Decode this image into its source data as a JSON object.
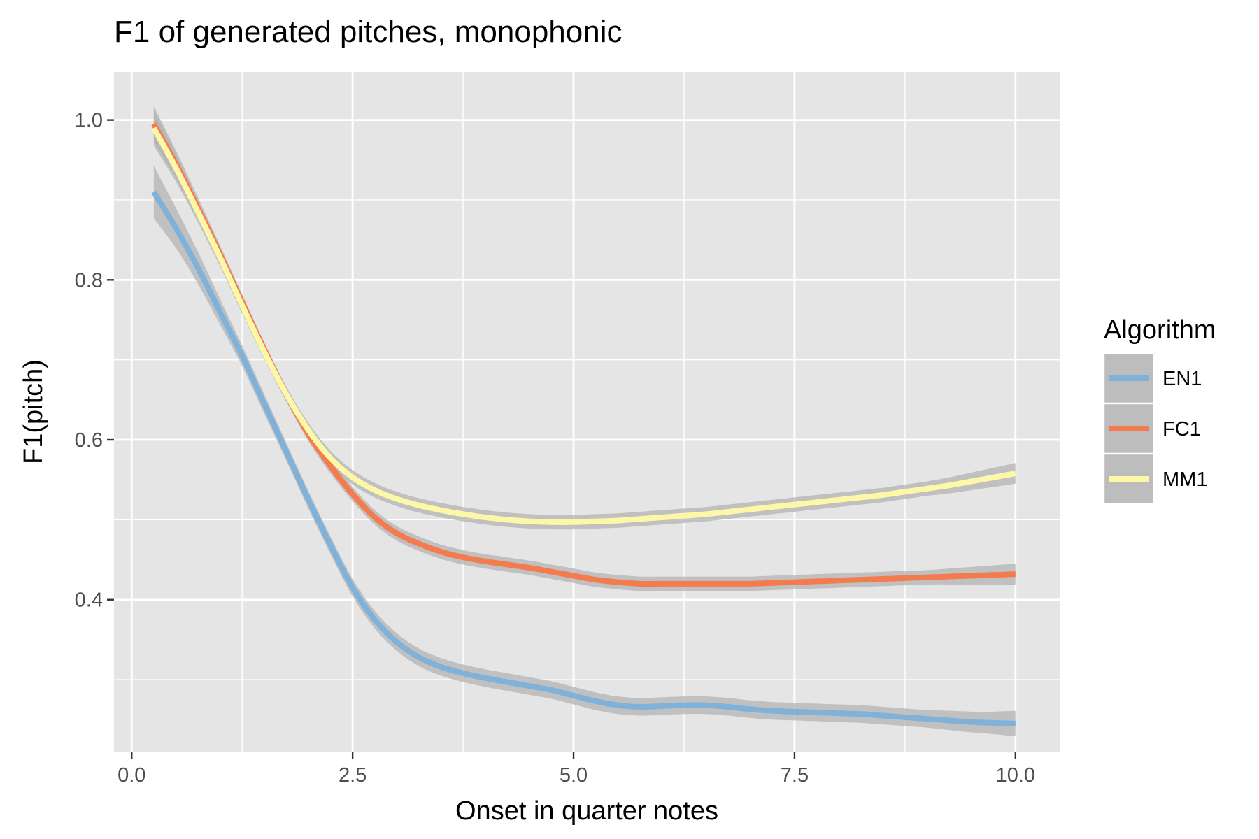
{
  "chart_data": {
    "type": "line",
    "title": "F1 of generated pitches, monophonic",
    "xlabel": "Onset in quarter notes",
    "ylabel": "F1(pitch)",
    "xlim": [
      -0.2,
      10.5
    ],
    "ylim": [
      0.21,
      1.06
    ],
    "xticks": [
      {
        "value": 0,
        "label": "0.0"
      },
      {
        "value": 2.5,
        "label": "2.5"
      },
      {
        "value": 5,
        "label": "5.0"
      },
      {
        "value": 7.5,
        "label": "7.5"
      },
      {
        "value": 10,
        "label": "10.0"
      }
    ],
    "yticks": [
      {
        "value": 0.4,
        "label": "0.4"
      },
      {
        "value": 0.6,
        "label": "0.6"
      },
      {
        "value": 0.8,
        "label": "0.8"
      },
      {
        "value": 1.0,
        "label": "1.0"
      }
    ],
    "x_minor_grid": [
      1.25,
      3.75,
      6.25,
      8.75
    ],
    "y_minor_grid": [
      0.3,
      0.5,
      0.7,
      0.9
    ],
    "grid": true,
    "panel_color": "#e5e5e5",
    "ribbon_color": "#b3b3b3",
    "legend": {
      "title": "Algorithm",
      "position": "right"
    },
    "series": [
      {
        "name": "EN1",
        "color": "#7fb1d9",
        "points": [
          {
            "x": 0.25,
            "y": 0.91,
            "se": 0.033
          },
          {
            "x": 0.5,
            "y": 0.865,
            "se": 0.025
          },
          {
            "x": 0.75,
            "y": 0.815,
            "se": 0.02
          },
          {
            "x": 1.0,
            "y": 0.76,
            "se": 0.016
          },
          {
            "x": 1.25,
            "y": 0.705,
            "se": 0.013
          },
          {
            "x": 1.5,
            "y": 0.645,
            "se": 0.012
          },
          {
            "x": 1.75,
            "y": 0.585,
            "se": 0.011
          },
          {
            "x": 2.0,
            "y": 0.525,
            "se": 0.011
          },
          {
            "x": 2.25,
            "y": 0.468,
            "se": 0.011
          },
          {
            "x": 2.5,
            "y": 0.415,
            "se": 0.011
          },
          {
            "x": 2.75,
            "y": 0.375,
            "se": 0.011
          },
          {
            "x": 3.0,
            "y": 0.347,
            "se": 0.011
          },
          {
            "x": 3.25,
            "y": 0.328,
            "se": 0.011
          },
          {
            "x": 3.5,
            "y": 0.316,
            "se": 0.011
          },
          {
            "x": 3.75,
            "y": 0.308,
            "se": 0.011
          },
          {
            "x": 4.0,
            "y": 0.302,
            "se": 0.011
          },
          {
            "x": 4.25,
            "y": 0.297,
            "se": 0.011
          },
          {
            "x": 4.5,
            "y": 0.292,
            "se": 0.011
          },
          {
            "x": 4.75,
            "y": 0.287,
            "se": 0.011
          },
          {
            "x": 5.0,
            "y": 0.28,
            "se": 0.011
          },
          {
            "x": 5.25,
            "y": 0.273,
            "se": 0.011
          },
          {
            "x": 5.5,
            "y": 0.268,
            "se": 0.011
          },
          {
            "x": 5.75,
            "y": 0.266,
            "se": 0.011
          },
          {
            "x": 6.0,
            "y": 0.267,
            "se": 0.011
          },
          {
            "x": 6.25,
            "y": 0.268,
            "se": 0.011
          },
          {
            "x": 6.5,
            "y": 0.268,
            "se": 0.011
          },
          {
            "x": 6.75,
            "y": 0.266,
            "se": 0.011
          },
          {
            "x": 7.0,
            "y": 0.263,
            "se": 0.011
          },
          {
            "x": 7.25,
            "y": 0.261,
            "se": 0.011
          },
          {
            "x": 7.5,
            "y": 0.26,
            "se": 0.011
          },
          {
            "x": 7.75,
            "y": 0.259,
            "se": 0.011
          },
          {
            "x": 8.0,
            "y": 0.258,
            "se": 0.011
          },
          {
            "x": 8.25,
            "y": 0.257,
            "se": 0.011
          },
          {
            "x": 8.5,
            "y": 0.255,
            "se": 0.011
          },
          {
            "x": 8.75,
            "y": 0.253,
            "se": 0.011
          },
          {
            "x": 9.0,
            "y": 0.251,
            "se": 0.011
          },
          {
            "x": 9.25,
            "y": 0.249,
            "se": 0.012
          },
          {
            "x": 9.5,
            "y": 0.247,
            "se": 0.013
          },
          {
            "x": 9.75,
            "y": 0.246,
            "se": 0.014
          },
          {
            "x": 10.0,
            "y": 0.245,
            "se": 0.016
          }
        ]
      },
      {
        "name": "FC1",
        "color": "#f47b4e",
        "points": [
          {
            "x": 0.25,
            "y": 0.995,
            "se": 0.022
          },
          {
            "x": 0.5,
            "y": 0.945,
            "se": 0.017
          },
          {
            "x": 0.75,
            "y": 0.89,
            "se": 0.013
          },
          {
            "x": 1.0,
            "y": 0.832,
            "se": 0.011
          },
          {
            "x": 1.25,
            "y": 0.772,
            "se": 0.01
          },
          {
            "x": 1.5,
            "y": 0.713,
            "se": 0.009
          },
          {
            "x": 1.75,
            "y": 0.657,
            "se": 0.009
          },
          {
            "x": 2.0,
            "y": 0.607,
            "se": 0.009
          },
          {
            "x": 2.25,
            "y": 0.567,
            "se": 0.009
          },
          {
            "x": 2.5,
            "y": 0.532,
            "se": 0.009
          },
          {
            "x": 2.75,
            "y": 0.503,
            "se": 0.009
          },
          {
            "x": 3.0,
            "y": 0.483,
            "se": 0.009
          },
          {
            "x": 3.25,
            "y": 0.47,
            "se": 0.009
          },
          {
            "x": 3.5,
            "y": 0.46,
            "se": 0.009
          },
          {
            "x": 3.75,
            "y": 0.453,
            "se": 0.009
          },
          {
            "x": 4.0,
            "y": 0.448,
            "se": 0.009
          },
          {
            "x": 4.25,
            "y": 0.444,
            "se": 0.009
          },
          {
            "x": 4.5,
            "y": 0.44,
            "se": 0.009
          },
          {
            "x": 4.75,
            "y": 0.435,
            "se": 0.009
          },
          {
            "x": 5.0,
            "y": 0.43,
            "se": 0.009
          },
          {
            "x": 5.25,
            "y": 0.425,
            "se": 0.009
          },
          {
            "x": 5.5,
            "y": 0.422,
            "se": 0.009
          },
          {
            "x": 5.75,
            "y": 0.42,
            "se": 0.009
          },
          {
            "x": 6.0,
            "y": 0.42,
            "se": 0.009
          },
          {
            "x": 6.25,
            "y": 0.42,
            "se": 0.009
          },
          {
            "x": 6.5,
            "y": 0.42,
            "se": 0.009
          },
          {
            "x": 6.75,
            "y": 0.42,
            "se": 0.009
          },
          {
            "x": 7.0,
            "y": 0.42,
            "se": 0.009
          },
          {
            "x": 7.25,
            "y": 0.421,
            "se": 0.009
          },
          {
            "x": 7.5,
            "y": 0.422,
            "se": 0.009
          },
          {
            "x": 7.75,
            "y": 0.423,
            "se": 0.009
          },
          {
            "x": 8.0,
            "y": 0.424,
            "se": 0.009
          },
          {
            "x": 8.25,
            "y": 0.425,
            "se": 0.009
          },
          {
            "x": 8.5,
            "y": 0.426,
            "se": 0.009
          },
          {
            "x": 8.75,
            "y": 0.427,
            "se": 0.009
          },
          {
            "x": 9.0,
            "y": 0.428,
            "se": 0.009
          },
          {
            "x": 9.25,
            "y": 0.429,
            "se": 0.01
          },
          {
            "x": 9.5,
            "y": 0.43,
            "se": 0.011
          },
          {
            "x": 9.75,
            "y": 0.431,
            "se": 0.012
          },
          {
            "x": 10.0,
            "y": 0.432,
            "se": 0.013
          }
        ]
      },
      {
        "name": "MM1",
        "color": "#fdf8a7",
        "points": [
          {
            "x": 0.25,
            "y": 0.99,
            "se": 0.022
          },
          {
            "x": 0.5,
            "y": 0.94,
            "se": 0.017
          },
          {
            "x": 0.75,
            "y": 0.885,
            "se": 0.013
          },
          {
            "x": 1.0,
            "y": 0.828,
            "se": 0.011
          },
          {
            "x": 1.25,
            "y": 0.768,
            "se": 0.01
          },
          {
            "x": 1.5,
            "y": 0.71,
            "se": 0.009
          },
          {
            "x": 1.75,
            "y": 0.657,
            "se": 0.009
          },
          {
            "x": 2.0,
            "y": 0.612,
            "se": 0.009
          },
          {
            "x": 2.25,
            "y": 0.577,
            "se": 0.009
          },
          {
            "x": 2.5,
            "y": 0.553,
            "se": 0.009
          },
          {
            "x": 2.75,
            "y": 0.537,
            "se": 0.009
          },
          {
            "x": 3.0,
            "y": 0.526,
            "se": 0.009
          },
          {
            "x": 3.25,
            "y": 0.518,
            "se": 0.009
          },
          {
            "x": 3.5,
            "y": 0.512,
            "se": 0.009
          },
          {
            "x": 3.75,
            "y": 0.507,
            "se": 0.009
          },
          {
            "x": 4.0,
            "y": 0.503,
            "se": 0.009
          },
          {
            "x": 4.25,
            "y": 0.5,
            "se": 0.009
          },
          {
            "x": 4.5,
            "y": 0.498,
            "se": 0.009
          },
          {
            "x": 4.75,
            "y": 0.497,
            "se": 0.009
          },
          {
            "x": 5.0,
            "y": 0.497,
            "se": 0.009
          },
          {
            "x": 5.25,
            "y": 0.498,
            "se": 0.009
          },
          {
            "x": 5.5,
            "y": 0.499,
            "se": 0.009
          },
          {
            "x": 5.75,
            "y": 0.501,
            "se": 0.009
          },
          {
            "x": 6.0,
            "y": 0.503,
            "se": 0.009
          },
          {
            "x": 6.25,
            "y": 0.505,
            "se": 0.009
          },
          {
            "x": 6.5,
            "y": 0.507,
            "se": 0.009
          },
          {
            "x": 6.75,
            "y": 0.51,
            "se": 0.009
          },
          {
            "x": 7.0,
            "y": 0.513,
            "se": 0.009
          },
          {
            "x": 7.25,
            "y": 0.516,
            "se": 0.009
          },
          {
            "x": 7.5,
            "y": 0.519,
            "se": 0.009
          },
          {
            "x": 7.75,
            "y": 0.522,
            "se": 0.009
          },
          {
            "x": 8.0,
            "y": 0.525,
            "se": 0.009
          },
          {
            "x": 8.25,
            "y": 0.528,
            "se": 0.009
          },
          {
            "x": 8.5,
            "y": 0.531,
            "se": 0.009
          },
          {
            "x": 8.75,
            "y": 0.535,
            "se": 0.009
          },
          {
            "x": 9.0,
            "y": 0.539,
            "se": 0.009
          },
          {
            "x": 9.25,
            "y": 0.543,
            "se": 0.01
          },
          {
            "x": 9.5,
            "y": 0.548,
            "se": 0.011
          },
          {
            "x": 9.75,
            "y": 0.553,
            "se": 0.012
          },
          {
            "x": 10.0,
            "y": 0.558,
            "se": 0.013
          }
        ]
      }
    ]
  }
}
